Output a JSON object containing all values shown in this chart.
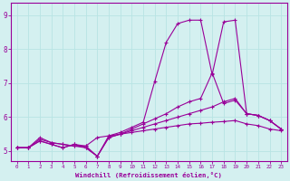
{
  "xlabel": "Windchill (Refroidissement éolien,°C)",
  "background_color": "#d4f0f0",
  "grid_color": "#b8e4e4",
  "line_color": "#990099",
  "xlim": [
    -0.5,
    23.5
  ],
  "ylim": [
    4.7,
    9.35
  ],
  "yticks": [
    5,
    6,
    7,
    8,
    9
  ],
  "xticks": [
    0,
    1,
    2,
    3,
    4,
    5,
    6,
    7,
    8,
    9,
    10,
    11,
    12,
    13,
    14,
    15,
    16,
    17,
    18,
    19,
    20,
    21,
    22,
    23
  ],
  "series": [
    {
      "x": [
        0,
        1,
        2,
        3,
        4,
        5,
        6,
        7,
        8,
        9,
        10,
        11,
        12,
        13,
        14,
        15,
        16,
        17,
        18,
        19,
        20,
        21,
        22,
        23
      ],
      "y": [
        5.1,
        5.1,
        5.35,
        5.25,
        5.2,
        5.15,
        5.15,
        5.4,
        5.45,
        5.5,
        5.55,
        5.6,
        5.65,
        5.7,
        5.75,
        5.8,
        5.82,
        5.85,
        5.87,
        5.9,
        5.8,
        5.75,
        5.65,
        5.6
      ]
    },
    {
      "x": [
        0,
        1,
        2,
        3,
        4,
        5,
        6,
        7,
        8,
        9,
        10,
        11,
        12,
        13,
        14,
        15,
        16,
        17,
        18,
        19,
        20,
        21,
        22,
        23
      ],
      "y": [
        5.1,
        5.1,
        5.3,
        5.2,
        5.1,
        5.2,
        5.15,
        4.85,
        5.4,
        5.5,
        5.6,
        5.7,
        5.8,
        5.9,
        6.0,
        6.1,
        6.2,
        6.3,
        6.45,
        6.55,
        6.1,
        6.05,
        5.9,
        5.65
      ]
    },
    {
      "x": [
        0,
        1,
        2,
        3,
        4,
        5,
        6,
        7,
        8,
        9,
        10,
        11,
        12,
        13,
        14,
        15,
        16,
        17,
        18,
        19,
        20,
        21,
        22,
        23
      ],
      "y": [
        5.1,
        5.1,
        5.4,
        5.25,
        5.2,
        5.15,
        5.1,
        4.85,
        5.4,
        5.5,
        5.65,
        5.8,
        5.95,
        6.1,
        6.3,
        6.45,
        6.55,
        7.3,
        6.4,
        6.5,
        6.1,
        6.05,
        5.9,
        5.65
      ]
    },
    {
      "x": [
        0,
        1,
        2,
        3,
        4,
        5,
        6,
        7,
        8,
        9,
        10,
        11,
        12,
        13,
        14,
        15,
        16,
        17,
        18,
        19,
        20,
        21,
        22,
        23
      ],
      "y": [
        5.1,
        5.1,
        5.3,
        5.2,
        5.1,
        5.2,
        5.1,
        4.85,
        5.45,
        5.55,
        5.7,
        5.85,
        7.05,
        8.2,
        8.75,
        8.85,
        8.85,
        7.25,
        8.8,
        8.85,
        6.1,
        6.05,
        5.9,
        5.65
      ]
    }
  ]
}
